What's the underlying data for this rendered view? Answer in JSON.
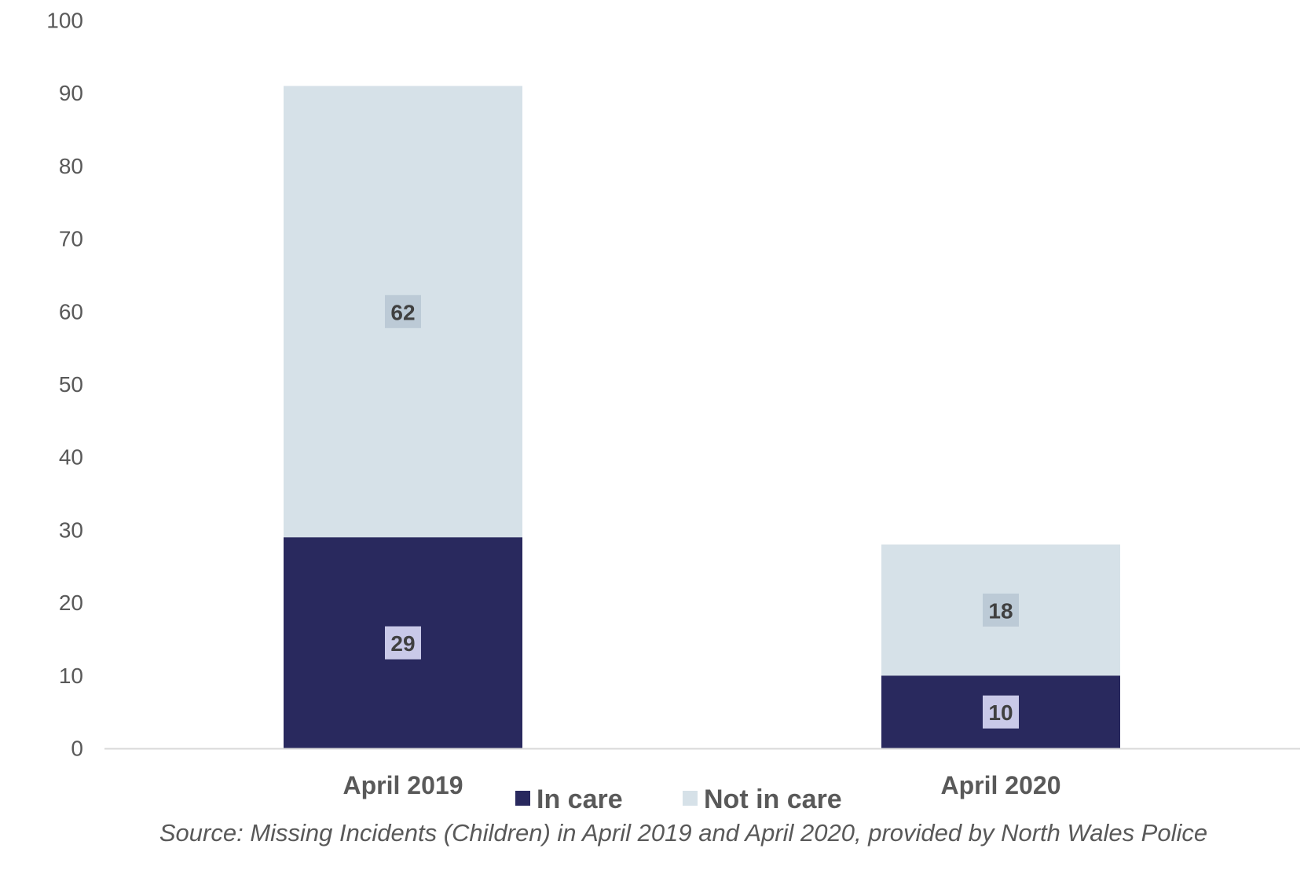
{
  "chart_data": {
    "type": "bar",
    "stacked": true,
    "categories": [
      "April 2019",
      "April 2020"
    ],
    "series": [
      {
        "name": "In care",
        "values": [
          29,
          10
        ],
        "color": "#29295e",
        "label_bg": "#c9c9e8"
      },
      {
        "name": "Not in care",
        "values": [
          62,
          18
        ],
        "color": "#d6e1e8",
        "label_bg": "#bccad6"
      }
    ],
    "yticks": [
      0,
      10,
      20,
      30,
      40,
      50,
      60,
      70,
      80,
      90,
      100
    ],
    "ylim": [
      0,
      100
    ],
    "grid": false,
    "legend": "bottom",
    "title": "",
    "xlabel": "",
    "ylabel": ""
  },
  "source_note": "Source: Missing Incidents (Children) in April 2019 and April 2020, provided by North Wales Police",
  "colors": {
    "axis": "#d9d9d9",
    "text": "#595959"
  }
}
